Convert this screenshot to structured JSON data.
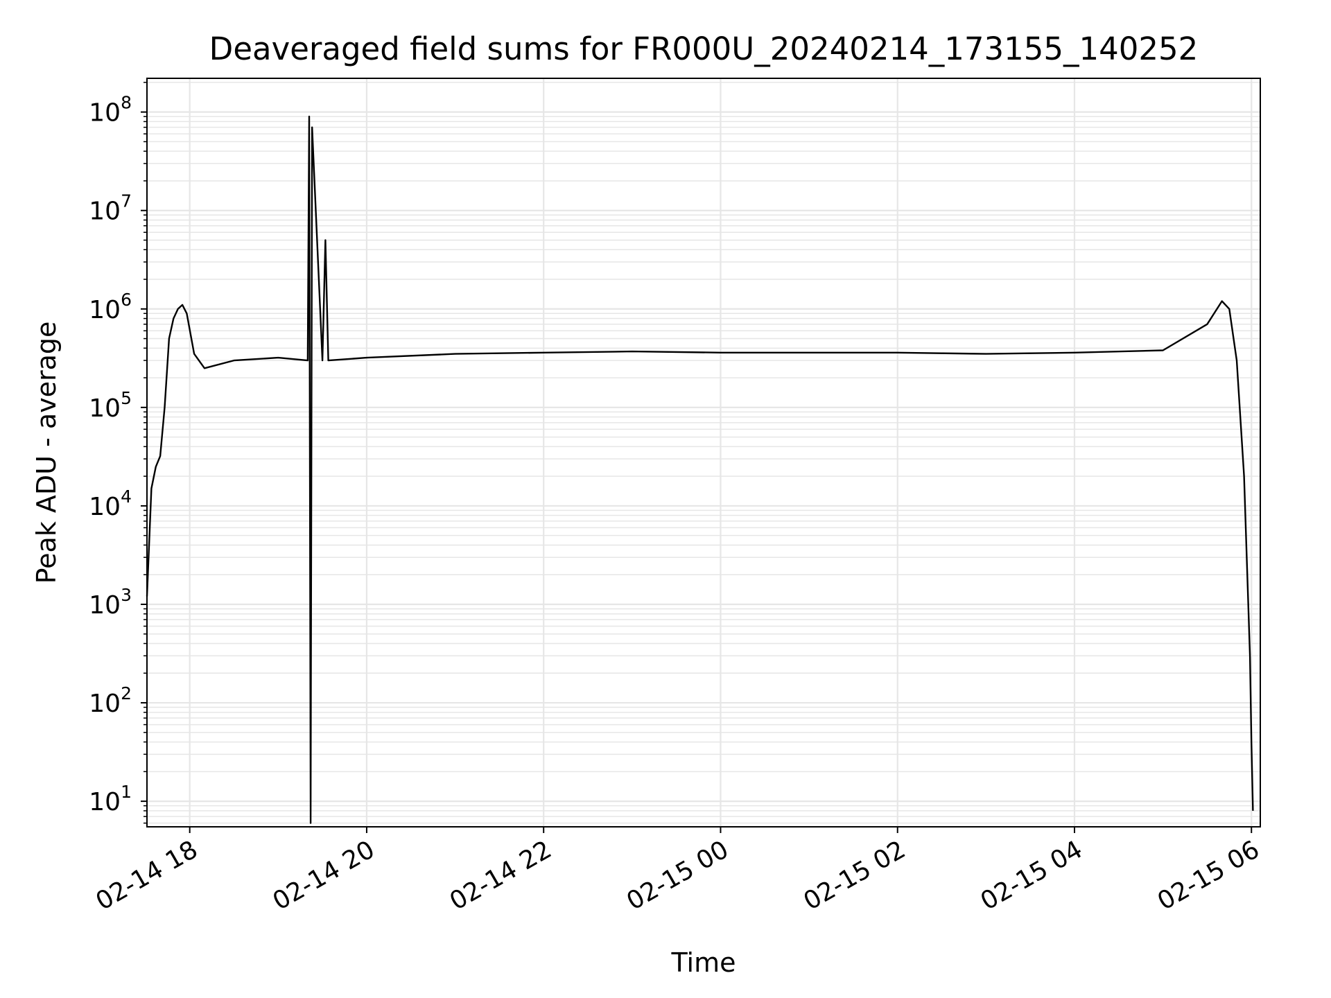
{
  "chart_data": {
    "type": "line",
    "title": "Deaveraged field sums for FR000U_20240214_173155_140252",
    "xlabel": "Time",
    "ylabel": "Peak ADU - average",
    "y_scale": "log",
    "grid": true,
    "line_color": "#000000",
    "grid_color": "#e6e6e6",
    "xlim": [
      "2024-02-14 17:31",
      "2024-02-15 06:06"
    ],
    "ylim": [
      5.5,
      220000000
    ],
    "x_ticks": [
      {
        "value": "2024-02-14 18:00",
        "label": "02-14 18"
      },
      {
        "value": "2024-02-14 20:00",
        "label": "02-14 20"
      },
      {
        "value": "2024-02-14 22:00",
        "label": "02-14 22"
      },
      {
        "value": "2024-02-15 00:00",
        "label": "02-15 00"
      },
      {
        "value": "2024-02-15 02:00",
        "label": "02-15 02"
      },
      {
        "value": "2024-02-15 04:00",
        "label": "02-15 04"
      },
      {
        "value": "2024-02-15 06:00",
        "label": "02-15 06"
      }
    ],
    "y_ticks": [
      {
        "value": 10,
        "base": "10",
        "exp": "1"
      },
      {
        "value": 100,
        "base": "10",
        "exp": "2"
      },
      {
        "value": 1000,
        "base": "10",
        "exp": "3"
      },
      {
        "value": 10000,
        "base": "10",
        "exp": "4"
      },
      {
        "value": 100000,
        "base": "10",
        "exp": "5"
      },
      {
        "value": 1000000,
        "base": "10",
        "exp": "6"
      },
      {
        "value": 10000000,
        "base": "10",
        "exp": "7"
      },
      {
        "value": 100000000,
        "base": "10",
        "exp": "8"
      }
    ],
    "series": [
      {
        "noise_band_note": false,
        "x": [
          "2024-02-14 17:31",
          "2024-02-14 17:34",
          "2024-02-14 17:37",
          "2024-02-14 17:40",
          "2024-02-14 17:43",
          "2024-02-14 17:46",
          "2024-02-14 17:49",
          "2024-02-14 17:52",
          "2024-02-14 17:55",
          "2024-02-14 17:58",
          "2024-02-14 18:03",
          "2024-02-14 18:10",
          "2024-02-14 18:30",
          "2024-02-14 19:00",
          "2024-02-14 19:20",
          "2024-02-14 19:21",
          "2024-02-14 19:22",
          "2024-02-14 19:23",
          "2024-02-14 19:30",
          "2024-02-14 19:32",
          "2024-02-14 19:34",
          "2024-02-14 20:00",
          "2024-02-14 21:00",
          "2024-02-14 22:00",
          "2024-02-14 23:00",
          "2024-02-15 00:00",
          "2024-02-15 01:00",
          "2024-02-15 02:00",
          "2024-02-15 03:00",
          "2024-02-15 04:00",
          "2024-02-15 05:00",
          "2024-02-15 05:30",
          "2024-02-15 05:40",
          "2024-02-15 05:45",
          "2024-02-15 05:50",
          "2024-02-15 05:55",
          "2024-02-15 05:59",
          "2024-02-15 06:00",
          "2024-02-15 06:01"
        ],
        "y": [
          1200,
          15000,
          25000,
          32000,
          100000,
          500000,
          800000,
          1000000,
          1100000,
          900000,
          350000,
          250000,
          300000,
          320000,
          300000,
          90000000,
          6,
          70000000,
          300000,
          5000000,
          300000,
          320000,
          350000,
          360000,
          370000,
          360000,
          360000,
          360000,
          350000,
          360000,
          380000,
          700000,
          1200000,
          1000000,
          300000,
          20000,
          300,
          40,
          8
        ]
      }
    ]
  }
}
